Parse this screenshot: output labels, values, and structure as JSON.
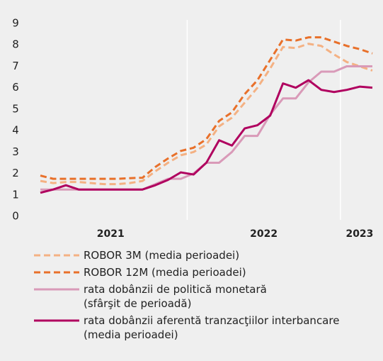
{
  "chart_data": {
    "type": "line",
    "x": [
      0.5,
      1.5,
      2.5,
      3.5,
      4.5,
      5.5,
      6.5,
      7.5,
      8.5,
      9.5,
      10.5,
      11.5,
      12.5,
      13.5,
      14.5,
      15.5,
      16.5,
      17.5,
      18.5,
      19.5,
      20.5,
      21.5,
      22.5,
      23.5,
      24.5,
      25.5,
      26.5
    ],
    "xlim": [
      0,
      27
    ],
    "xticks": [
      {
        "value": 6,
        "label": "2021"
      },
      {
        "value": 18,
        "label": "2022"
      },
      {
        "value": 25.5,
        "label": "2023"
      }
    ],
    "xgrid": [
      12,
      24
    ],
    "ylim": [
      0,
      9
    ],
    "yticks": [
      0,
      1,
      2,
      3,
      4,
      5,
      6,
      7,
      8,
      9
    ],
    "series": [
      {
        "name": "ROBOR 3M (media perioadei)",
        "color": "#f4b183",
        "dashed": true,
        "values": [
          1.65,
          1.55,
          1.6,
          1.6,
          1.55,
          1.5,
          1.5,
          1.55,
          1.65,
          2.1,
          2.5,
          2.85,
          3.0,
          3.35,
          4.2,
          4.6,
          5.3,
          6.0,
          6.9,
          7.9,
          7.85,
          8.05,
          7.95,
          7.55,
          7.2,
          7.0,
          6.8
        ]
      },
      {
        "name": "ROBOR 12M (media perioadei)",
        "color": "#e8702a",
        "dashed": true,
        "values": [
          1.9,
          1.75,
          1.75,
          1.75,
          1.75,
          1.75,
          1.75,
          1.78,
          1.8,
          2.3,
          2.7,
          3.05,
          3.2,
          3.6,
          4.45,
          4.85,
          5.7,
          6.35,
          7.3,
          8.25,
          8.2,
          8.35,
          8.35,
          8.15,
          7.95,
          7.8,
          7.6
        ]
      },
      {
        "name": "rata dobânzii de politică monetară\n(sfârşit de perioadă)",
        "color": "#d99ab8",
        "dashed": false,
        "values": [
          1.25,
          1.25,
          1.25,
          1.25,
          1.25,
          1.25,
          1.25,
          1.25,
          1.25,
          1.5,
          1.75,
          1.75,
          2.0,
          2.5,
          2.5,
          3.0,
          3.75,
          3.75,
          4.75,
          5.5,
          5.5,
          6.25,
          6.75,
          6.75,
          7.0,
          7.0,
          7.0
        ]
      },
      {
        "name": "rata dobânzii aferentă tranzacţiilor interbancare\n(media perioadei)",
        "color": "#b0005f",
        "dashed": false,
        "values": [
          1.1,
          1.25,
          1.45,
          1.25,
          1.25,
          1.25,
          1.25,
          1.25,
          1.25,
          1.45,
          1.7,
          2.05,
          1.95,
          2.5,
          3.55,
          3.3,
          4.1,
          4.25,
          4.7,
          6.2,
          6.0,
          6.35,
          5.9,
          5.8,
          5.9,
          6.05,
          6.0
        ]
      }
    ]
  }
}
